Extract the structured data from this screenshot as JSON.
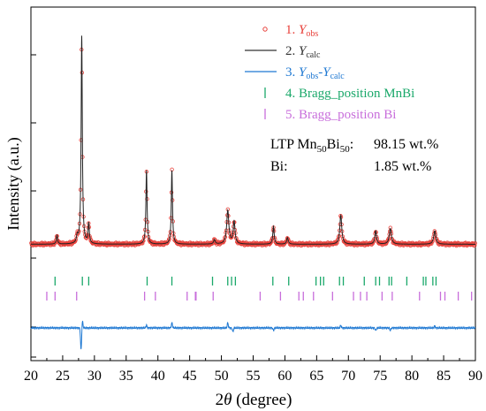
{
  "chart_data": {
    "type": "line",
    "xlabel_main": "2",
    "xlabel_italic": "θ",
    "xlabel_rest": " (degree)",
    "ylabel": "Intensity (a.u.)",
    "xlim": [
      20,
      90
    ],
    "xticks": [
      20,
      25,
      30,
      35,
      40,
      45,
      50,
      55,
      60,
      65,
      70,
      75,
      80,
      85,
      90
    ],
    "yticks_labeled": false,
    "grid": false,
    "legend_position": "top-right",
    "legend": [
      {
        "num": "1. ",
        "main": "Y",
        "sub": "obs",
        "minus": "",
        "main2": "",
        "sub2": "",
        "color": "#e8403a",
        "marker": "circle"
      },
      {
        "num": "2. ",
        "main": "Y",
        "sub": "calc",
        "minus": "",
        "main2": "",
        "sub2": "",
        "color": "#333333",
        "marker": "line"
      },
      {
        "num": "3. ",
        "main": "Y",
        "sub": "obs",
        "minus": "-",
        "main2": "Y",
        "sub2": "calc",
        "color": "#1e78d2",
        "marker": "line"
      },
      {
        "num": "",
        "main": "4. Bragg_position MnBi",
        "sub": "",
        "minus": "",
        "main2": "",
        "sub2": "",
        "color": "#1aa86a",
        "marker": "tick"
      },
      {
        "num": "",
        "main": "5. Bragg_position Bi",
        "sub": "",
        "minus": "",
        "main2": "",
        "sub2": "",
        "color": "#c86edb",
        "marker": "tick"
      }
    ],
    "phase_table": [
      {
        "label_pre": "LTP Mn",
        "sub1": "50",
        "mid": "Bi",
        "sub2": "50",
        "post": ":",
        "value": "98.15 wt.%"
      },
      {
        "label_pre": "Bi:",
        "sub1": "",
        "mid": "",
        "sub2": "",
        "post": "",
        "value": "1.85 wt.%"
      }
    ],
    "background_level": 0.05,
    "peaks": [
      {
        "x": 24.1,
        "h": 0.04,
        "w": 0.12
      },
      {
        "x": 27.3,
        "h": 0.03,
        "w": 0.15
      },
      {
        "x": 28.0,
        "h": 0.93,
        "w": 0.11
      },
      {
        "x": 29.1,
        "h": 0.09,
        "w": 0.12
      },
      {
        "x": 38.2,
        "h": 0.33,
        "w": 0.11
      },
      {
        "x": 42.2,
        "h": 0.33,
        "w": 0.11
      },
      {
        "x": 48.9,
        "h": 0.02,
        "w": 0.15
      },
      {
        "x": 51.0,
        "h": 0.15,
        "w": 0.2
      },
      {
        "x": 52.0,
        "h": 0.1,
        "w": 0.17
      },
      {
        "x": 58.2,
        "h": 0.08,
        "w": 0.13
      },
      {
        "x": 60.4,
        "h": 0.03,
        "w": 0.15
      },
      {
        "x": 68.8,
        "h": 0.13,
        "w": 0.18
      },
      {
        "x": 74.3,
        "h": 0.06,
        "w": 0.16
      },
      {
        "x": 76.6,
        "h": 0.07,
        "w": 0.2
      },
      {
        "x": 83.6,
        "h": 0.06,
        "w": 0.2
      }
    ],
    "mnbi_positions": [
      23.8,
      28.1,
      29.1,
      38.3,
      42.2,
      48.6,
      51.0,
      51.6,
      52.2,
      58.1,
      60.6,
      64.9,
      65.6,
      66.1,
      68.6,
      69.2,
      72.5,
      74.3,
      74.9,
      76.4,
      76.8,
      79.2,
      81.8,
      82.2,
      83.3,
      83.8
    ],
    "bi_positions": [
      22.5,
      23.8,
      27.2,
      37.9,
      39.6,
      44.6,
      45.9,
      46.0,
      48.7,
      56.1,
      59.3,
      62.2,
      62.9,
      64.5,
      67.5,
      70.8,
      71.9,
      72.9,
      75.3,
      76.9,
      81.2,
      84.5,
      85.2,
      87.3,
      89.4
    ],
    "diff_spikes": [
      {
        "x": 27.9,
        "v": -0.09
      },
      {
        "x": 28.1,
        "v": 0.03
      },
      {
        "x": 38.2,
        "v": 0.01
      },
      {
        "x": 42.2,
        "v": 0.02
      },
      {
        "x": 51.0,
        "v": 0.02
      },
      {
        "x": 51.8,
        "v": -0.015
      },
      {
        "x": 58.2,
        "v": -0.01
      },
      {
        "x": 68.8,
        "v": 0.01
      },
      {
        "x": 74.3,
        "v": -0.01
      },
      {
        "x": 76.6,
        "v": -0.01
      },
      {
        "x": 83.6,
        "v": 0.008
      }
    ]
  }
}
